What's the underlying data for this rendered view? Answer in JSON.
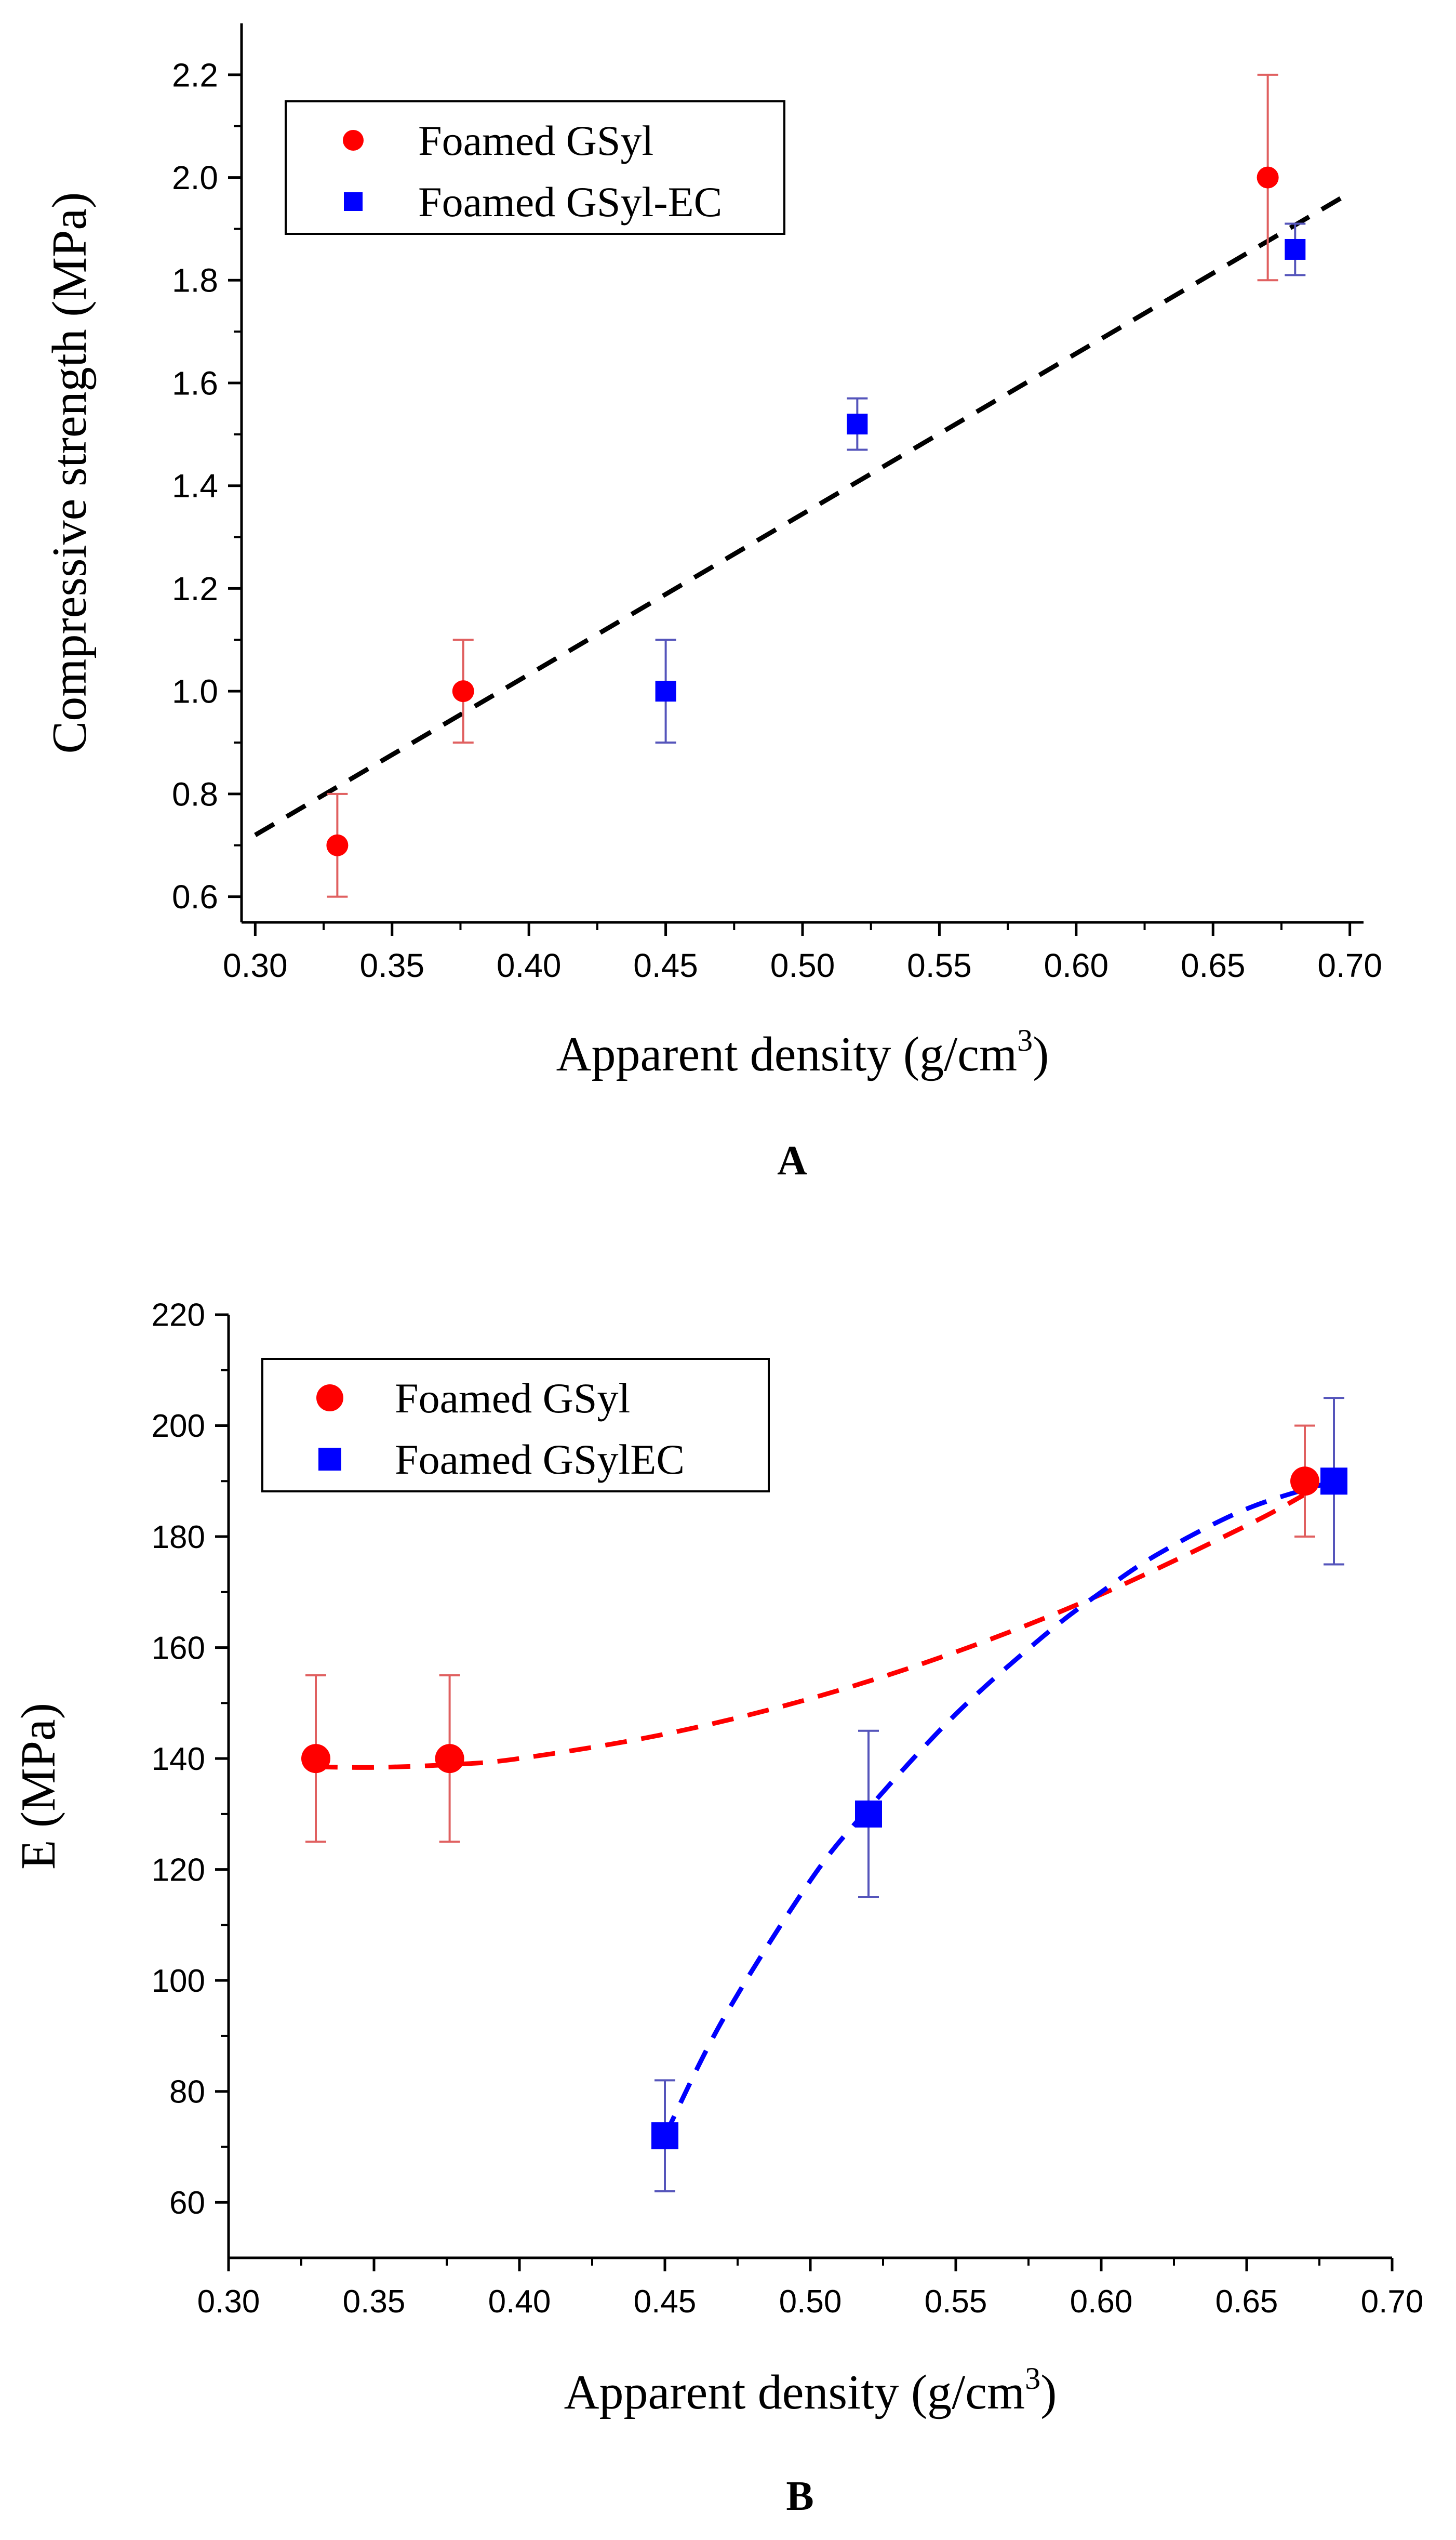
{
  "chart_data": [
    {
      "panel_label": "A",
      "type": "scatter",
      "xlabel": "Apparent density (g/cm",
      "xlabel_sup": "3",
      "xlabel_close": ")",
      "ylabel": "Compressive strength (MPa)",
      "xlim": [
        0.3,
        0.7
      ],
      "ylim": [
        0.55,
        2.3
      ],
      "xticks": [
        0.3,
        0.35,
        0.4,
        0.45,
        0.5,
        0.55,
        0.6,
        0.65,
        0.7
      ],
      "xtick_labels": [
        "0.30",
        "0.35",
        "0.40",
        "0.45",
        "0.50",
        "0.55",
        "0.60",
        "0.65",
        "0.70"
      ],
      "yticks": [
        0.6,
        0.8,
        1.0,
        1.2,
        1.4,
        1.6,
        1.8,
        2.0,
        2.2
      ],
      "ytick_labels": [
        "0.6",
        "0.8",
        "1.0",
        "1.2",
        "1.4",
        "1.6",
        "1.8",
        "2.0",
        "2.2"
      ],
      "legend_position": "top-left",
      "series": [
        {
          "name": "Foamed GSyl",
          "marker": "circle",
          "color": "#ff0000",
          "error_color": "#e06060",
          "points": [
            {
              "x": 0.33,
              "y": 0.7,
              "err": 0.1
            },
            {
              "x": 0.376,
              "y": 1.0,
              "err": 0.1
            },
            {
              "x": 0.67,
              "y": 2.0,
              "err": 0.2
            }
          ]
        },
        {
          "name": "Foamed GSyl-EC",
          "marker": "square",
          "color": "#0000ff",
          "error_color": "#5555bb",
          "points": [
            {
              "x": 0.45,
              "y": 1.0,
              "err": 0.1
            },
            {
              "x": 0.52,
              "y": 1.52,
              "err": 0.05
            },
            {
              "x": 0.68,
              "y": 1.86,
              "err": 0.05
            }
          ]
        }
      ],
      "fit_lines": [
        {
          "kind": "linear",
          "color": "#000000",
          "x": [
            0.3,
            0.7
          ],
          "y": [
            0.72,
            1.97
          ]
        }
      ]
    },
    {
      "panel_label": "B",
      "type": "scatter",
      "xlabel": "Apparent density (g/cm",
      "xlabel_sup": "3",
      "xlabel_close": ")",
      "ylabel": "E (MPa)",
      "xlim": [
        0.3,
        0.7
      ],
      "ylim": [
        50,
        220
      ],
      "xticks": [
        0.3,
        0.35,
        0.4,
        0.45,
        0.5,
        0.55,
        0.6,
        0.65,
        0.7
      ],
      "xtick_labels": [
        "0.30",
        "0.35",
        "0.40",
        "0.45",
        "0.50",
        "0.55",
        "0.60",
        "0.65",
        "0.70"
      ],
      "yticks": [
        60,
        80,
        100,
        120,
        140,
        160,
        180,
        200,
        220
      ],
      "ytick_labels": [
        "60",
        "80",
        "100",
        "120",
        "140",
        "160",
        "180",
        "200",
        "220"
      ],
      "legend_position": "top-left",
      "series": [
        {
          "name": "Foamed GSyl",
          "marker": "circle",
          "color": "#ff0000",
          "error_color": "#e06060",
          "points": [
            {
              "x": 0.33,
              "y": 140,
              "err": 15
            },
            {
              "x": 0.376,
              "y": 140,
              "err": 15
            },
            {
              "x": 0.67,
              "y": 190,
              "err": 10
            }
          ]
        },
        {
          "name": "Foamed GSylEC",
          "marker": "square",
          "color": "#0000ff",
          "error_color": "#5555bb",
          "points": [
            {
              "x": 0.45,
              "y": 72,
              "err": 10
            },
            {
              "x": 0.52,
              "y": 130,
              "err": 15
            },
            {
              "x": 0.68,
              "y": 190,
              "err": 15
            }
          ]
        }
      ],
      "fit_lines": [
        {
          "kind": "quadratic",
          "color": "#ff0000",
          "x": [
            0.33,
            0.35,
            0.376,
            0.4,
            0.45,
            0.5,
            0.55,
            0.6,
            0.65,
            0.67
          ],
          "y": [
            138.5,
            138.4,
            138.9,
            140.0,
            144.4,
            150.8,
            159.2,
            169.6,
            182.0,
            187.6
          ]
        },
        {
          "kind": "quadratic",
          "color": "#0000ff",
          "x": [
            0.45,
            0.47,
            0.5,
            0.52,
            0.55,
            0.58,
            0.6,
            0.62,
            0.65,
            0.68
          ],
          "y": [
            72,
            93,
            118,
            131,
            148,
            162,
            170,
            177,
            185,
            190
          ]
        }
      ]
    }
  ]
}
